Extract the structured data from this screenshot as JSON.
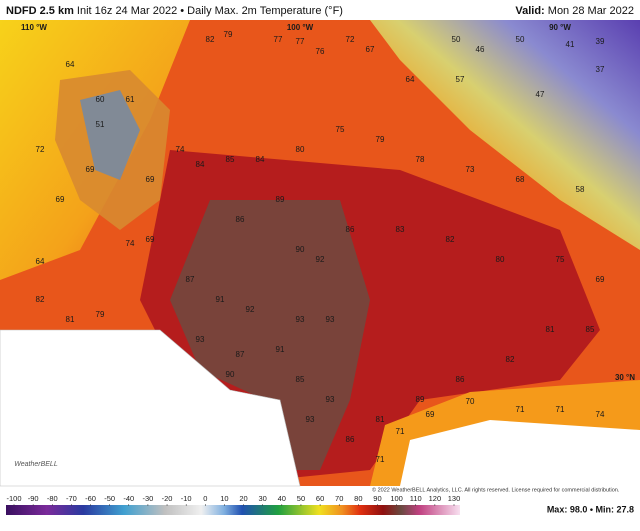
{
  "header": {
    "model": "NDFD 2.5 km",
    "init": "Init 16z 24 Mar 2022 • Daily Max. 2m Temperature (°F)",
    "valid_label": "Valid:",
    "valid": "Mon 28 Mar 2022"
  },
  "map": {
    "graticule": [
      "110 °W",
      "100 °W",
      "90 °W",
      "30 °N"
    ],
    "values": [
      82,
      79,
      77,
      77,
      76,
      72,
      67,
      50,
      46,
      50,
      41,
      39,
      37,
      47,
      57,
      64,
      64,
      60,
      51,
      61,
      72,
      69,
      69,
      69,
      74,
      84,
      85,
      84,
      80,
      75,
      79,
      78,
      73,
      68,
      58,
      86,
      89,
      90,
      92,
      86,
      83,
      82,
      80,
      75,
      69,
      87,
      91,
      92,
      93,
      93,
      91,
      87,
      93,
      90,
      85,
      93,
      93,
      86,
      81,
      89,
      86,
      70,
      71,
      71,
      74,
      69,
      71,
      71,
      82,
      81,
      79,
      69,
      74,
      64,
      82,
      81,
      85
    ]
  },
  "colorbar": {
    "ticks": [
      -100,
      -90,
      -80,
      -70,
      -60,
      -50,
      -40,
      -30,
      -20,
      -10,
      0,
      10,
      20,
      30,
      40,
      50,
      60,
      70,
      80,
      90,
      100,
      110,
      120,
      130
    ]
  },
  "footer": {
    "copyright": "© 2022 WeatherBELL Analytics, LLC. All rights reserved. License required for commercial distribution.",
    "stats": "Max: 98.0 • Min: 27.8",
    "logo": "WeatherBELL"
  }
}
